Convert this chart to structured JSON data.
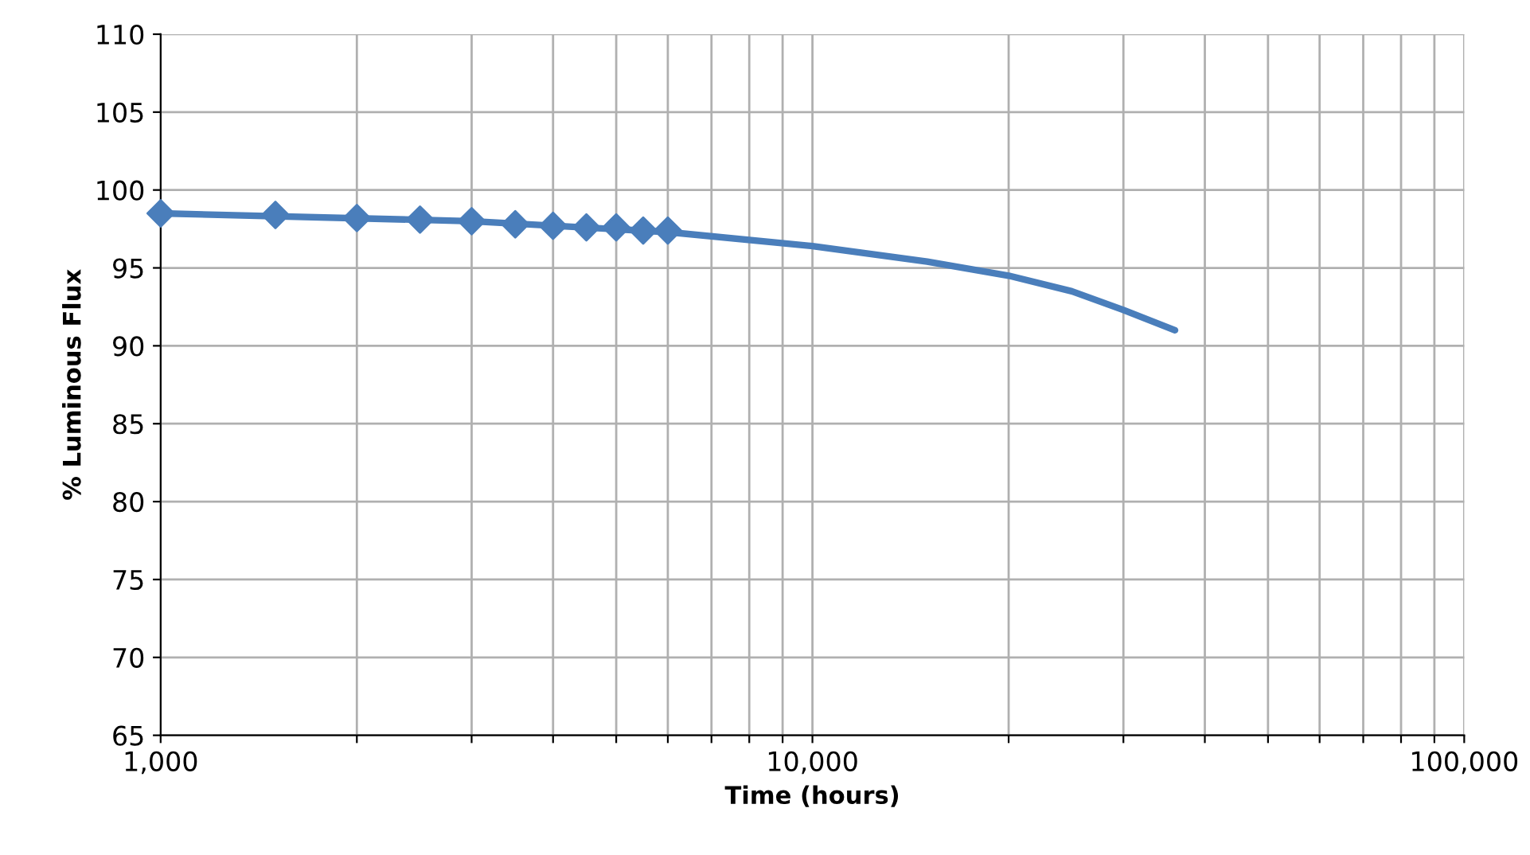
{
  "chart_data": {
    "type": "line",
    "xlabel": "Time (hours)",
    "ylabel": "% Luminous Flux",
    "log": "x",
    "xlim": [
      1000,
      100000
    ],
    "ylim": [
      65,
      110
    ],
    "xticks": [
      {
        "value": 1000,
        "label": "1,000"
      },
      {
        "value": 2000,
        "label": null
      },
      {
        "value": 3000,
        "label": null
      },
      {
        "value": 4000,
        "label": null
      },
      {
        "value": 5000,
        "label": null
      },
      {
        "value": 6000,
        "label": null
      },
      {
        "value": 7000,
        "label": null
      },
      {
        "value": 8000,
        "label": null
      },
      {
        "value": 9000,
        "label": null
      },
      {
        "value": 10000,
        "label": "10,000"
      },
      {
        "value": 20000,
        "label": null
      },
      {
        "value": 30000,
        "label": null
      },
      {
        "value": 40000,
        "label": null
      },
      {
        "value": 50000,
        "label": null
      },
      {
        "value": 60000,
        "label": null
      },
      {
        "value": 70000,
        "label": null
      },
      {
        "value": 80000,
        "label": null
      },
      {
        "value": 90000,
        "label": null
      },
      {
        "value": 100000,
        "label": "100,000"
      }
    ],
    "yticks": [
      65,
      70,
      75,
      80,
      85,
      90,
      95,
      100,
      105,
      110
    ],
    "grid": true,
    "series": [
      {
        "type": "scatter",
        "color": "#4a7ebb",
        "marker": "diamond",
        "x": [
          1000,
          1500,
          2000,
          2500,
          3000,
          3500,
          4000,
          4500,
          5000,
          5500,
          6000
        ],
        "values": [
          98.5,
          98.4,
          98.2,
          98.1,
          98.0,
          97.8,
          97.7,
          97.6,
          97.6,
          97.4,
          97.4
        ]
      },
      {
        "color": "#4a7ebb",
        "marker": "none",
        "x": [
          1000,
          3000,
          6000,
          10000,
          15000,
          20000,
          25000,
          30000,
          36000
        ],
        "values": [
          98.5,
          98.0,
          97.3,
          96.4,
          95.4,
          94.5,
          93.5,
          92.3,
          91.0
        ]
      }
    ]
  }
}
